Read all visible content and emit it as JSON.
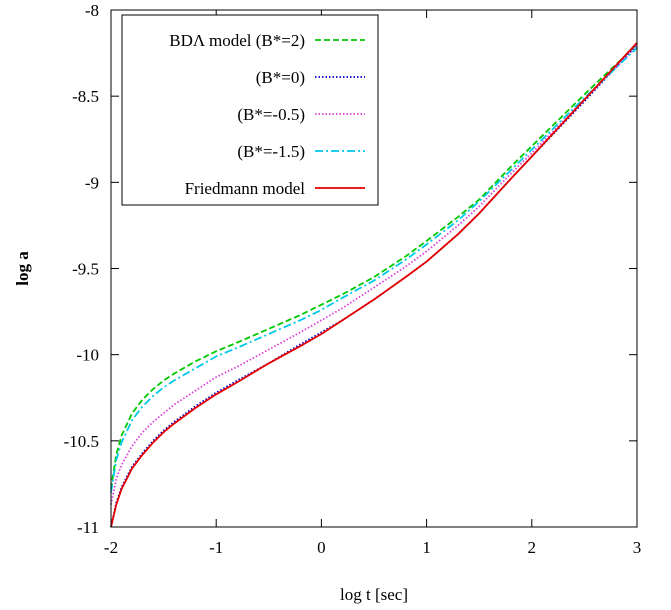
{
  "chart_data": {
    "type": "line",
    "xlabel": "log t [sec]",
    "ylabel": "log a",
    "xlim": [
      -2,
      3
    ],
    "ylim": [
      -11,
      -8
    ],
    "xticks": [
      "-2",
      "-1",
      "0",
      "1",
      "2",
      "3"
    ],
    "yticks": [
      "-11",
      "-10.5",
      "-10",
      "-9.5",
      "-9",
      "-8.5",
      "-8"
    ],
    "grid": false,
    "legend_position": "top-left",
    "series": [
      {
        "name": "BDΛ model (B*=2)",
        "color": "#00c800",
        "dash": "dashed",
        "points": [
          [
            -2,
            -10.78
          ],
          [
            -1.95,
            -10.58
          ],
          [
            -1.9,
            -10.47
          ],
          [
            -1.8,
            -10.34
          ],
          [
            -1.7,
            -10.26
          ],
          [
            -1.6,
            -10.2
          ],
          [
            -1.5,
            -10.15
          ],
          [
            -1.4,
            -10.11
          ],
          [
            -1.2,
            -10.04
          ],
          [
            -1,
            -9.98
          ],
          [
            -0.8,
            -9.93
          ],
          [
            -0.5,
            -9.85
          ],
          [
            -0.2,
            -9.77
          ],
          [
            0,
            -9.71
          ],
          [
            0.2,
            -9.65
          ],
          [
            0.5,
            -9.55
          ],
          [
            0.8,
            -9.43
          ],
          [
            1,
            -9.34
          ],
          [
            1.3,
            -9.2
          ],
          [
            1.5,
            -9.1
          ],
          [
            1.8,
            -8.91
          ],
          [
            2,
            -8.79
          ],
          [
            2.5,
            -8.49
          ],
          [
            3,
            -8.2
          ]
        ]
      },
      {
        "name": "(B*=0)",
        "color": "#0000c8",
        "dash": "dotted",
        "points": [
          [
            -2,
            -11
          ],
          [
            -1.95,
            -10.86
          ],
          [
            -1.9,
            -10.77
          ],
          [
            -1.8,
            -10.65
          ],
          [
            -1.7,
            -10.57
          ],
          [
            -1.6,
            -10.5
          ],
          [
            -1.5,
            -10.44
          ],
          [
            -1.4,
            -10.39
          ],
          [
            -1.2,
            -10.3
          ],
          [
            -1,
            -10.22
          ],
          [
            -0.8,
            -10.15
          ],
          [
            -0.5,
            -10.05
          ],
          [
            -0.2,
            -9.94
          ],
          [
            0,
            -9.87
          ],
          [
            0.2,
            -9.8
          ],
          [
            0.5,
            -9.68
          ],
          [
            0.8,
            -9.55
          ],
          [
            1,
            -9.46
          ],
          [
            1.3,
            -9.3
          ],
          [
            1.5,
            -9.18
          ],
          [
            1.8,
            -8.98
          ],
          [
            2,
            -8.85
          ],
          [
            2.5,
            -8.53
          ],
          [
            3,
            -8.2
          ]
        ]
      },
      {
        "name": "(B*=-0.5)",
        "color": "#dc3cdc",
        "dash": "dotted",
        "points": [
          [
            -2,
            -10.87
          ],
          [
            -1.95,
            -10.72
          ],
          [
            -1.9,
            -10.64
          ],
          [
            -1.8,
            -10.53
          ],
          [
            -1.7,
            -10.45
          ],
          [
            -1.6,
            -10.39
          ],
          [
            -1.5,
            -10.34
          ],
          [
            -1.4,
            -10.29
          ],
          [
            -1.2,
            -10.21
          ],
          [
            -1,
            -10.13
          ],
          [
            -0.8,
            -10.07
          ],
          [
            -0.5,
            -9.97
          ],
          [
            -0.2,
            -9.87
          ],
          [
            0,
            -9.8
          ],
          [
            0.2,
            -9.73
          ],
          [
            0.5,
            -9.61
          ],
          [
            0.8,
            -9.49
          ],
          [
            1,
            -9.4
          ],
          [
            1.3,
            -9.25
          ],
          [
            1.5,
            -9.14
          ],
          [
            1.8,
            -8.95
          ],
          [
            2,
            -8.83
          ],
          [
            2.5,
            -8.52
          ],
          [
            3,
            -8.21
          ]
        ]
      },
      {
        "name": "(B*=-1.5)",
        "color": "#00c8e6",
        "dash": "dashdot",
        "points": [
          [
            -2,
            -10.8
          ],
          [
            -1.95,
            -10.61
          ],
          [
            -1.9,
            -10.51
          ],
          [
            -1.8,
            -10.38
          ],
          [
            -1.7,
            -10.3
          ],
          [
            -1.6,
            -10.24
          ],
          [
            -1.5,
            -10.19
          ],
          [
            -1.4,
            -10.15
          ],
          [
            -1.2,
            -10.08
          ],
          [
            -1,
            -10.01
          ],
          [
            -0.8,
            -9.96
          ],
          [
            -0.5,
            -9.88
          ],
          [
            -0.2,
            -9.8
          ],
          [
            0,
            -9.74
          ],
          [
            0.2,
            -9.67
          ],
          [
            0.5,
            -9.57
          ],
          [
            0.8,
            -9.45
          ],
          [
            1,
            -9.36
          ],
          [
            1.3,
            -9.22
          ],
          [
            1.5,
            -9.11
          ],
          [
            1.8,
            -8.93
          ],
          [
            2,
            -8.81
          ],
          [
            2.5,
            -8.51
          ],
          [
            3,
            -8.22
          ]
        ]
      },
      {
        "name": "Friedmann model",
        "color": "#e60000",
        "dash": "solid",
        "points": [
          [
            -2,
            -11
          ],
          [
            -1.95,
            -10.87
          ],
          [
            -1.9,
            -10.78
          ],
          [
            -1.8,
            -10.66
          ],
          [
            -1.7,
            -10.58
          ],
          [
            -1.6,
            -10.51
          ],
          [
            -1.5,
            -10.45
          ],
          [
            -1.4,
            -10.4
          ],
          [
            -1.2,
            -10.31
          ],
          [
            -1,
            -10.23
          ],
          [
            -0.8,
            -10.16
          ],
          [
            -0.5,
            -10.05
          ],
          [
            -0.2,
            -9.95
          ],
          [
            0,
            -9.88
          ],
          [
            0.2,
            -9.8
          ],
          [
            0.5,
            -9.68
          ],
          [
            0.8,
            -9.55
          ],
          [
            1,
            -9.46
          ],
          [
            1.3,
            -9.3
          ],
          [
            1.5,
            -9.18
          ],
          [
            1.8,
            -8.98
          ],
          [
            2,
            -8.85
          ],
          [
            2.5,
            -8.52
          ],
          [
            3,
            -8.19
          ]
        ]
      }
    ]
  }
}
